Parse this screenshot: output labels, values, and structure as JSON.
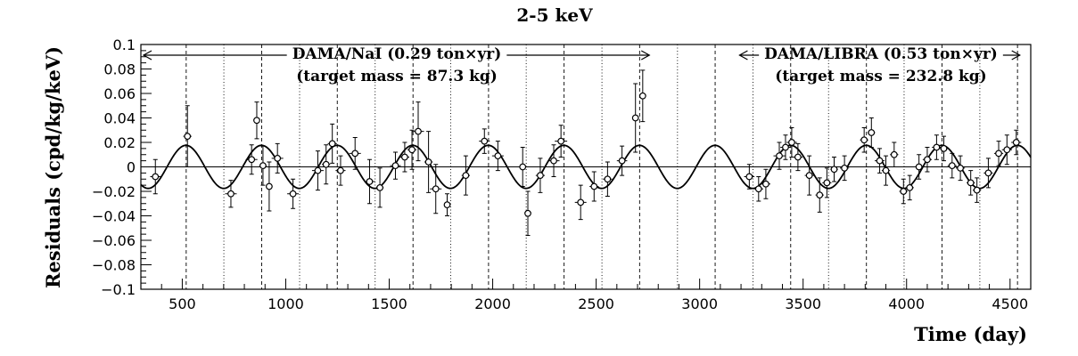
{
  "chart_data": {
    "type": "scatter",
    "title": "2-5 keV",
    "xlabel": "Time (day)",
    "ylabel": "Residuals (cpd/kg/keV)",
    "xlim": [
      300,
      4600
    ],
    "ylim": [
      -0.1,
      0.1
    ],
    "x_ticks": [
      500,
      1000,
      1500,
      2000,
      2500,
      3000,
      3500,
      4000,
      4500
    ],
    "y_ticks": [
      -0.1,
      -0.08,
      -0.06,
      -0.04,
      -0.02,
      0,
      0.02,
      0.04,
      0.06,
      0.08,
      0.1
    ],
    "y_tick_labels": [
      "−0.1",
      "−0.08",
      "−0.06",
      "−0.04",
      "−0.02",
      "0",
      "0.02",
      "0.04",
      "0.06",
      "0.08",
      "0.1"
    ],
    "x_tick_labels": [
      "500",
      "1000",
      "1500",
      "2000",
      "2500",
      "3000",
      "3500",
      "4000",
      "4500"
    ],
    "fit": {
      "name": "cosine fit",
      "amplitude": 0.0176,
      "period": 365.25,
      "phase": 152.5
    },
    "vertical_lines": {
      "dashed": [
        519,
        884,
        1249,
        1615,
        1980,
        2345,
        2710,
        3075,
        3440,
        3806,
        4171,
        4536
      ],
      "dotted": [
        701,
        1067,
        1432,
        1797,
        2162,
        2528,
        2893,
        3258,
        3623,
        3988,
        4354
      ]
    },
    "annotations": {
      "nai_line1": "DAMA/NaI (0.29 ton×yr)",
      "nai_line2": "(target mass = 87.3 kg)",
      "libra_line1": "DAMA/LIBRA (0.53 ton×yr)",
      "libra_line2": "(target mass = 232.8 kg)",
      "nai_range": [
        300,
        2770
      ],
      "libra_range": [
        3180,
        4560
      ]
    },
    "series": [
      {
        "name": "residuals",
        "points": [
          {
            "x": 370,
            "y": -0.008,
            "xerr": 25,
            "yerr": 0.014
          },
          {
            "x": 525,
            "y": 0.025,
            "xerr": 20,
            "yerr": 0.025
          },
          {
            "x": 735,
            "y": -0.022,
            "xerr": 28,
            "yerr": 0.011
          },
          {
            "x": 835,
            "y": 0.006,
            "xerr": 28,
            "yerr": 0.012
          },
          {
            "x": 860,
            "y": 0.038,
            "xerr": 14,
            "yerr": 0.015
          },
          {
            "x": 890,
            "y": 0.001,
            "xerr": 18,
            "yerr": 0.016
          },
          {
            "x": 920,
            "y": -0.016,
            "xerr": 14,
            "yerr": 0.02
          },
          {
            "x": 960,
            "y": 0.007,
            "xerr": 28,
            "yerr": 0.012
          },
          {
            "x": 1035,
            "y": -0.022,
            "xerr": 28,
            "yerr": 0.012
          },
          {
            "x": 1155,
            "y": -0.003,
            "xerr": 28,
            "yerr": 0.016
          },
          {
            "x": 1195,
            "y": 0.002,
            "xerr": 20,
            "yerr": 0.016
          },
          {
            "x": 1225,
            "y": 0.019,
            "xerr": 22,
            "yerr": 0.016
          },
          {
            "x": 1265,
            "y": -0.003,
            "xerr": 24,
            "yerr": 0.012
          },
          {
            "x": 1335,
            "y": 0.011,
            "xerr": 28,
            "yerr": 0.013
          },
          {
            "x": 1405,
            "y": -0.012,
            "xerr": 25,
            "yerr": 0.018
          },
          {
            "x": 1455,
            "y": -0.017,
            "xerr": 18,
            "yerr": 0.016
          },
          {
            "x": 1530,
            "y": 0.001,
            "xerr": 26,
            "yerr": 0.011
          },
          {
            "x": 1575,
            "y": 0.008,
            "xerr": 22,
            "yerr": 0.012
          },
          {
            "x": 1610,
            "y": 0.014,
            "xerr": 22,
            "yerr": 0.016
          },
          {
            "x": 1640,
            "y": 0.029,
            "xerr": 28,
            "yerr": 0.024
          },
          {
            "x": 1690,
            "y": 0.004,
            "xerr": 20,
            "yerr": 0.025
          },
          {
            "x": 1725,
            "y": -0.018,
            "xerr": 28,
            "yerr": 0.02
          },
          {
            "x": 1780,
            "y": -0.031,
            "xerr": 14,
            "yerr": 0.009
          },
          {
            "x": 1870,
            "y": -0.007,
            "xerr": 20,
            "yerr": 0.016
          },
          {
            "x": 1960,
            "y": 0.021,
            "xerr": 26,
            "yerr": 0.01
          },
          {
            "x": 2025,
            "y": 0.009,
            "xerr": 28,
            "yerr": 0.012
          },
          {
            "x": 2145,
            "y": 0.0,
            "xerr": 20,
            "yerr": 0.016
          },
          {
            "x": 2170,
            "y": -0.038,
            "xerr": 14,
            "yerr": 0.018
          },
          {
            "x": 2230,
            "y": -0.007,
            "xerr": 22,
            "yerr": 0.014
          },
          {
            "x": 2295,
            "y": 0.005,
            "xerr": 28,
            "yerr": 0.013
          },
          {
            "x": 2330,
            "y": 0.021,
            "xerr": 30,
            "yerr": 0.013
          },
          {
            "x": 2425,
            "y": -0.029,
            "xerr": 28,
            "yerr": 0.014
          },
          {
            "x": 2490,
            "y": -0.016,
            "xerr": 22,
            "yerr": 0.012
          },
          {
            "x": 2555,
            "y": -0.01,
            "xerr": 22,
            "yerr": 0.014
          },
          {
            "x": 2625,
            "y": 0.005,
            "xerr": 25,
            "yerr": 0.012
          },
          {
            "x": 2690,
            "y": 0.04,
            "xerr": 14,
            "yerr": 0.028
          },
          {
            "x": 2725,
            "y": 0.058,
            "xerr": 12,
            "yerr": 0.021
          },
          {
            "x": 3240,
            "y": -0.008,
            "xerr": 25,
            "yerr": 0.01
          },
          {
            "x": 3285,
            "y": -0.018,
            "xerr": 22,
            "yerr": 0.01
          },
          {
            "x": 3320,
            "y": -0.014,
            "xerr": 22,
            "yerr": 0.012
          },
          {
            "x": 3385,
            "y": 0.009,
            "xerr": 28,
            "yerr": 0.011
          },
          {
            "x": 3415,
            "y": 0.016,
            "xerr": 25,
            "yerr": 0.01
          },
          {
            "x": 3445,
            "y": 0.02,
            "xerr": 25,
            "yerr": 0.012
          },
          {
            "x": 3475,
            "y": 0.008,
            "xerr": 22,
            "yerr": 0.011
          },
          {
            "x": 3530,
            "y": -0.007,
            "xerr": 22,
            "yerr": 0.016
          },
          {
            "x": 3580,
            "y": -0.023,
            "xerr": 20,
            "yerr": 0.014
          },
          {
            "x": 3615,
            "y": -0.013,
            "xerr": 22,
            "yerr": 0.012
          },
          {
            "x": 3650,
            "y": -0.002,
            "xerr": 18,
            "yerr": 0.01
          },
          {
            "x": 3700,
            "y": -0.001,
            "xerr": 22,
            "yerr": 0.01
          },
          {
            "x": 3795,
            "y": 0.022,
            "xerr": 20,
            "yerr": 0.01
          },
          {
            "x": 3830,
            "y": 0.028,
            "xerr": 18,
            "yerr": 0.012
          },
          {
            "x": 3870,
            "y": 0.005,
            "xerr": 24,
            "yerr": 0.01
          },
          {
            "x": 3900,
            "y": -0.003,
            "xerr": 20,
            "yerr": 0.012
          },
          {
            "x": 3940,
            "y": 0.01,
            "xerr": 20,
            "yerr": 0.01
          },
          {
            "x": 3985,
            "y": -0.02,
            "xerr": 20,
            "yerr": 0.01
          },
          {
            "x": 4015,
            "y": -0.017,
            "xerr": 20,
            "yerr": 0.01
          },
          {
            "x": 4060,
            "y": 0.0,
            "xerr": 20,
            "yerr": 0.01
          },
          {
            "x": 4100,
            "y": 0.006,
            "xerr": 22,
            "yerr": 0.01
          },
          {
            "x": 4145,
            "y": 0.016,
            "xerr": 22,
            "yerr": 0.01
          },
          {
            "x": 4180,
            "y": 0.015,
            "xerr": 20,
            "yerr": 0.01
          },
          {
            "x": 4220,
            "y": 0.001,
            "xerr": 22,
            "yerr": 0.01
          },
          {
            "x": 4260,
            "y": -0.001,
            "xerr": 22,
            "yerr": 0.01
          },
          {
            "x": 4310,
            "y": -0.013,
            "xerr": 20,
            "yerr": 0.01
          },
          {
            "x": 4340,
            "y": -0.019,
            "xerr": 20,
            "yerr": 0.01
          },
          {
            "x": 4395,
            "y": -0.005,
            "xerr": 22,
            "yerr": 0.012
          },
          {
            "x": 4445,
            "y": 0.011,
            "xerr": 22,
            "yerr": 0.01
          },
          {
            "x": 4485,
            "y": 0.014,
            "xerr": 24,
            "yerr": 0.012
          },
          {
            "x": 4530,
            "y": 0.02,
            "xerr": 24,
            "yerr": 0.01
          }
        ]
      }
    ]
  }
}
